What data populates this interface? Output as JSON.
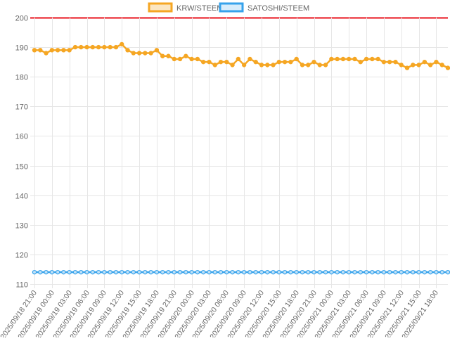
{
  "chart_data": {
    "type": "line",
    "title": "",
    "xlabel": "",
    "ylabel": "",
    "ylim": [
      110,
      200
    ],
    "y_ticks": [
      110,
      120,
      130,
      140,
      150,
      160,
      170,
      180,
      190,
      200
    ],
    "grid": true,
    "legend_position": "top-center",
    "x_tick_labels": [
      "2025/09/18 21:00",
      "2025/09/19 00:00",
      "2025/09/19 03:00",
      "2025/09/19 06:00",
      "2025/09/19 09:00",
      "2025/09/19 12:00",
      "2025/09/19 15:00",
      "2025/09/19 18:00",
      "2025/09/19 21:00",
      "2025/09/20 00:00",
      "2025/09/20 03:00",
      "2025/09/20 06:00",
      "2025/09/20 09:00",
      "2025/09/20 12:00",
      "2025/09/20 15:00",
      "2025/09/20 18:00",
      "2025/09/20 21:00",
      "2025/09/21 00:00",
      "2025/09/21 03:00",
      "2025/09/21 06:00",
      "2025/09/21 09:00",
      "2025/09/21 12:00",
      "2025/09/21 15:00",
      "2025/09/21 18:00"
    ],
    "series": [
      {
        "name": "KRW/STEEM",
        "color": "#f5a623",
        "values": [
          189,
          189,
          188,
          189,
          189,
          189,
          189,
          190,
          190,
          190,
          190,
          190,
          190,
          190,
          190,
          191,
          189,
          188,
          188,
          188,
          188,
          189,
          187,
          187,
          186,
          186,
          187,
          186,
          186,
          185,
          185,
          184,
          185,
          185,
          184,
          186,
          184,
          186,
          185,
          184,
          184,
          184,
          185,
          185,
          185,
          186,
          184,
          184,
          185,
          184,
          184,
          186,
          186,
          186,
          186,
          186,
          185,
          186,
          186,
          186,
          185,
          185,
          185,
          184,
          183,
          184,
          184,
          185,
          184,
          185,
          184,
          183
        ]
      },
      {
        "name": "SATOSHI/STEEM",
        "color": "#36a2eb",
        "values": [
          114,
          114,
          114,
          114,
          114,
          114,
          114,
          114,
          114,
          114,
          114,
          114,
          114,
          114,
          114,
          114,
          114,
          114,
          114,
          114,
          114,
          114,
          114,
          114,
          114,
          114,
          114,
          114,
          114,
          114,
          114,
          114,
          114,
          114,
          114,
          114,
          114,
          114,
          114,
          114,
          114,
          114,
          114,
          114,
          114,
          114,
          114,
          114,
          114,
          114,
          114,
          114,
          114,
          114,
          114,
          114,
          114,
          114,
          114,
          114,
          114,
          114,
          114,
          114,
          114,
          114,
          114,
          114,
          114,
          114,
          114,
          114
        ]
      }
    ],
    "reference_line": {
      "value": 200,
      "color": "#e8101a"
    }
  }
}
